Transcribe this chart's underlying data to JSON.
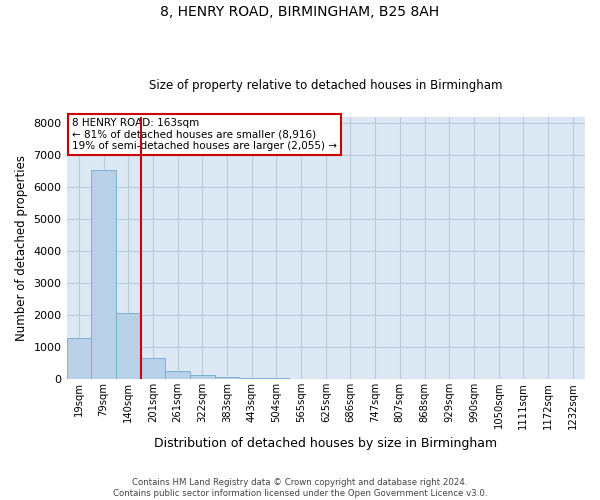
{
  "title": "8, HENRY ROAD, BIRMINGHAM, B25 8AH",
  "subtitle": "Size of property relative to detached houses in Birmingham",
  "xlabel": "Distribution of detached houses by size in Birmingham",
  "ylabel": "Number of detached properties",
  "footnote1": "Contains HM Land Registry data © Crown copyright and database right 2024.",
  "footnote2": "Contains public sector information licensed under the Open Government Licence v3.0.",
  "annotation_title": "8 HENRY ROAD: 163sqm",
  "annotation_line1": "← 81% of detached houses are smaller (8,916)",
  "annotation_line2": "19% of semi-detached houses are larger (2,055) →",
  "categories": [
    "19sqm",
    "79sqm",
    "140sqm",
    "201sqm",
    "261sqm",
    "322sqm",
    "383sqm",
    "443sqm",
    "504sqm",
    "565sqm",
    "625sqm",
    "686sqm",
    "747sqm",
    "807sqm",
    "868sqm",
    "929sqm",
    "990sqm",
    "1050sqm",
    "1111sqm",
    "1172sqm",
    "1232sqm"
  ],
  "values": [
    1300,
    6550,
    2060,
    660,
    260,
    130,
    80,
    40,
    50,
    0,
    0,
    0,
    0,
    0,
    0,
    0,
    0,
    0,
    0,
    0,
    0
  ],
  "bar_color": "#b8d0e8",
  "bar_edge_color": "#7aafd4",
  "red_line_color": "#cc0000",
  "annotation_box_edge_color": "#cc0000",
  "ax_facecolor": "#dce8f4",
  "background_color": "#ffffff",
  "grid_color": "#b8ccde",
  "ylim": [
    0,
    8200
  ],
  "yticks": [
    0,
    1000,
    2000,
    3000,
    4000,
    5000,
    6000,
    7000,
    8000
  ],
  "red_line_bin_index": 2.5
}
